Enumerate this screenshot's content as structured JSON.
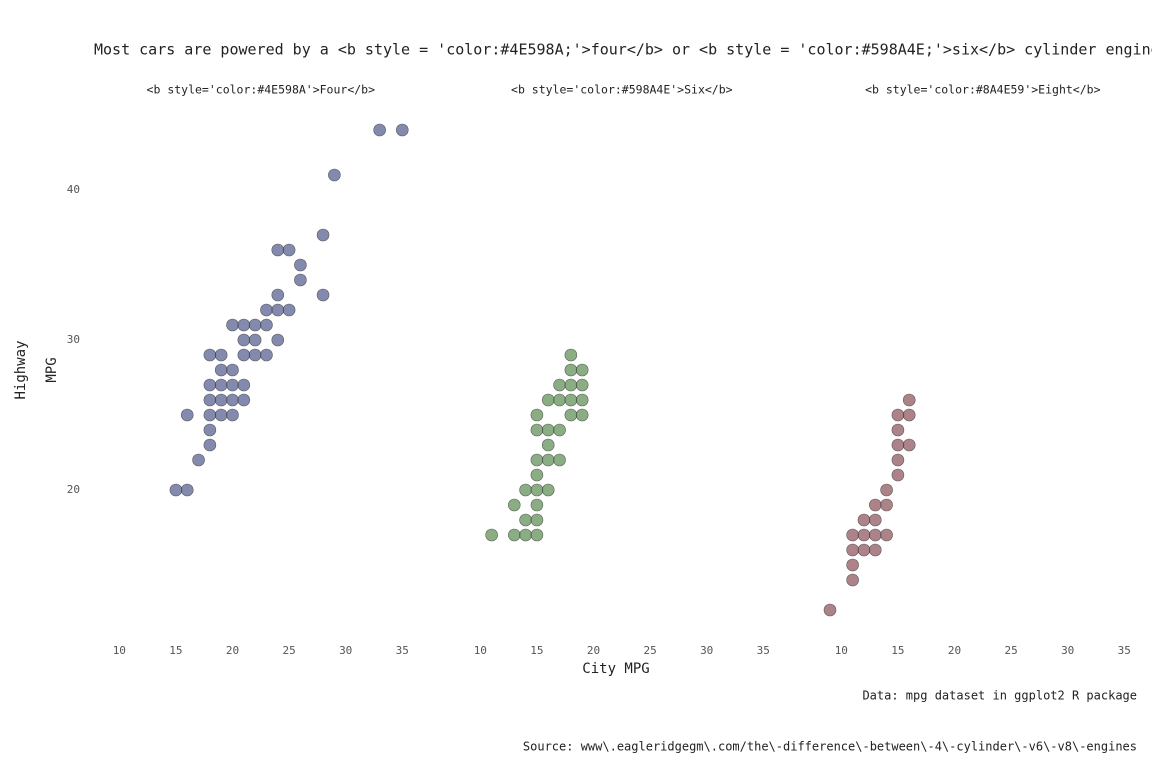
{
  "chart_data": {
    "type": "scatter",
    "title": "Most cars are powered by a <b style = 'color:#4E598A;'>four</b> or <b style = 'color:#598A4E;'>six</b> cylinder engine",
    "xlabel": "City MPG",
    "ylabel": [
      "Highway",
      "MPG"
    ],
    "captions": [
      "Data: mpg dataset in ggplot2 R package",
      "Source: www\\.eagleridgegm\\.com/the\\-difference\\-between\\-4\\-cylinder\\-v6\\-v8\\-engines"
    ],
    "xlim": [
      9,
      36
    ],
    "xticks": [
      10,
      15,
      20,
      25,
      30,
      35
    ],
    "ylim": [
      10,
      45
    ],
    "yticks": [
      20,
      30,
      40
    ],
    "facets": [
      {
        "title": "<b style='color:#4E598A'>Four</b>",
        "color": "#4E598A",
        "x": [
          15,
          16,
          16,
          17,
          18,
          18,
          18,
          18,
          18,
          18,
          19,
          19,
          19,
          19,
          19,
          20,
          20,
          20,
          20,
          20,
          21,
          21,
          21,
          21,
          21,
          22,
          22,
          22,
          23,
          23,
          23,
          24,
          24,
          24,
          24,
          25,
          25,
          26,
          26,
          28,
          28,
          29,
          33,
          35
        ],
        "y": [
          20,
          20,
          25,
          22,
          23,
          24,
          25,
          26,
          27,
          29,
          25,
          26,
          27,
          28,
          29,
          25,
          26,
          27,
          28,
          31,
          26,
          27,
          29,
          30,
          31,
          29,
          30,
          31,
          29,
          31,
          32,
          30,
          32,
          33,
          36,
          32,
          36,
          34,
          35,
          33,
          37,
          41,
          44,
          44
        ]
      },
      {
        "title": "<b style='color:#598A4E'>Six</b>",
        "color": "#598A4E",
        "x": [
          11,
          13,
          13,
          14,
          14,
          14,
          15,
          15,
          15,
          15,
          15,
          15,
          15,
          15,
          16,
          16,
          16,
          16,
          16,
          17,
          17,
          17,
          17,
          18,
          18,
          18,
          18,
          18,
          19,
          19,
          19,
          19
        ],
        "y": [
          17,
          17,
          19,
          17,
          18,
          20,
          17,
          18,
          19,
          20,
          21,
          22,
          24,
          25,
          20,
          22,
          23,
          24,
          26,
          22,
          24,
          26,
          27,
          25,
          26,
          27,
          28,
          29,
          25,
          26,
          27,
          28
        ]
      },
      {
        "title": "<b style='color:#8A4E59'>Eight</b>",
        "color": "#8A4E59",
        "x": [
          9,
          11,
          11,
          11,
          11,
          12,
          12,
          12,
          13,
          13,
          13,
          13,
          14,
          14,
          14,
          15,
          15,
          15,
          15,
          15,
          16,
          16,
          16
        ],
        "y": [
          12,
          14,
          15,
          16,
          17,
          16,
          17,
          18,
          16,
          17,
          18,
          19,
          17,
          19,
          20,
          21,
          22,
          23,
          24,
          25,
          23,
          25,
          26
        ]
      }
    ]
  }
}
